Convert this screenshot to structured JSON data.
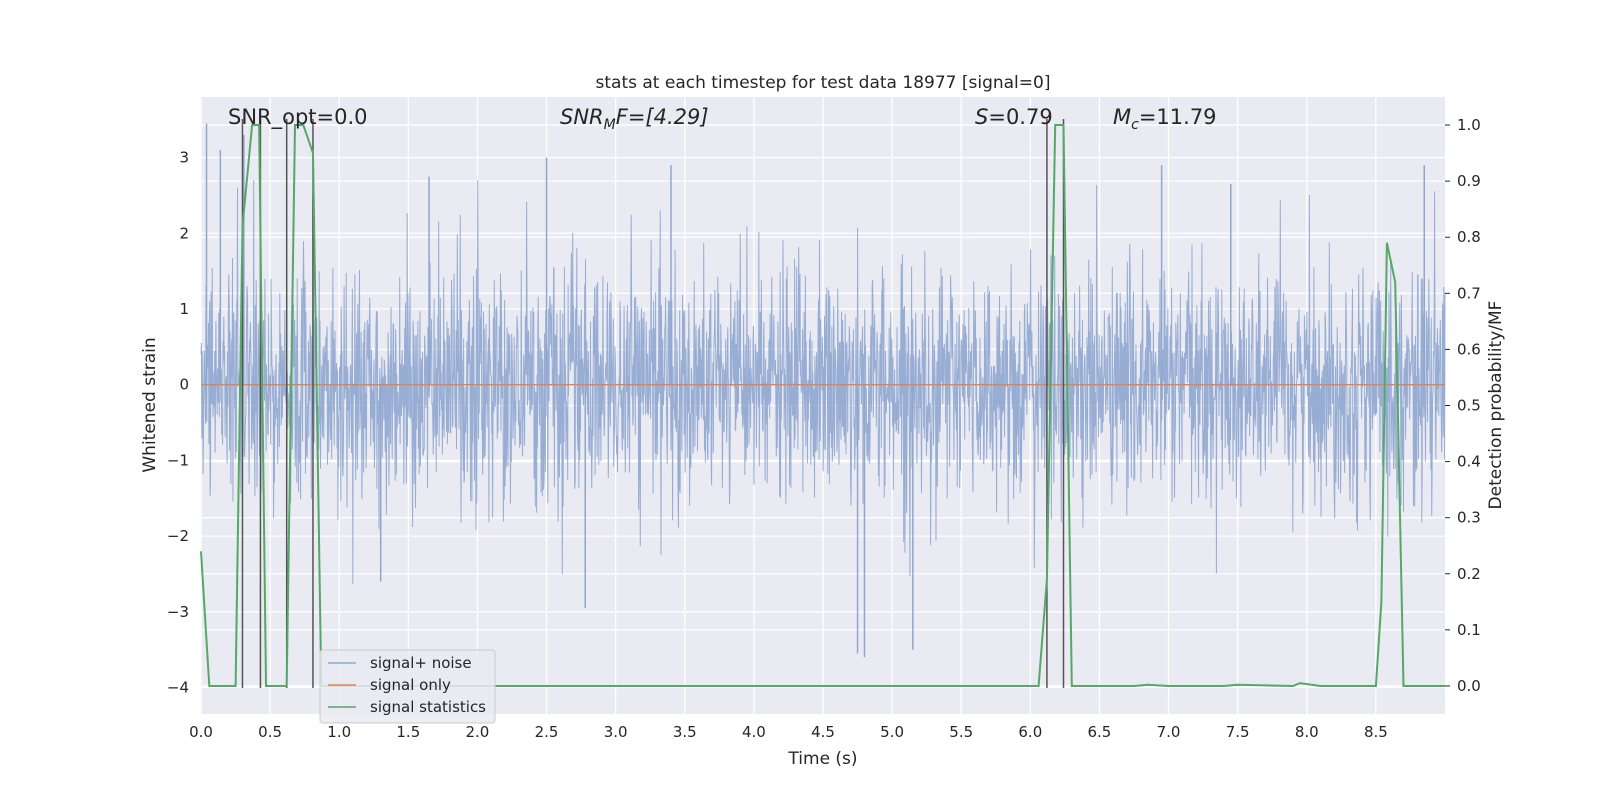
{
  "chart_data": {
    "type": "line",
    "title": "stats at each timestep for test data 18977 [signal=0]",
    "xlabel": "Time (s)",
    "ylabel": "Whitened strain",
    "y2label": "Detection probability/MF",
    "xlim": [
      0.0,
      9.0
    ],
    "ylim": [
      -4.35,
      3.8
    ],
    "y2lim": [
      -0.05,
      1.05
    ],
    "xticks": [
      "0.0",
      "0.5",
      "1.0",
      "1.5",
      "2.0",
      "2.5",
      "3.0",
      "3.5",
      "4.0",
      "4.5",
      "5.0",
      "5.5",
      "6.0",
      "6.5",
      "7.0",
      "7.5",
      "8.0",
      "8.5"
    ],
    "xtick_values": [
      0.0,
      0.5,
      1.0,
      1.5,
      2.0,
      2.5,
      3.0,
      3.5,
      4.0,
      4.5,
      5.0,
      5.5,
      6.0,
      6.5,
      7.0,
      7.5,
      8.0,
      8.5
    ],
    "yticks": [
      "−4",
      "−3",
      "−2",
      "−1",
      "0",
      "1",
      "2",
      "3"
    ],
    "ytick_values": [
      -4,
      -3,
      -2,
      -1,
      0,
      1,
      2,
      3
    ],
    "y2ticks": [
      "0.0",
      "0.1",
      "0.2",
      "0.3",
      "0.4",
      "0.5",
      "0.6",
      "0.7",
      "0.8",
      "0.9",
      "1.0"
    ],
    "y2tick_values": [
      0.0,
      0.1,
      0.2,
      0.3,
      0.4,
      0.5,
      0.6,
      0.7,
      0.8,
      0.9,
      1.0
    ],
    "grid": true,
    "legend_position": "lower-left",
    "annotations": [
      {
        "key": "snr_opt",
        "text": "SNR_opt=0.0"
      },
      {
        "key": "snr_mf",
        "text": "SNR_MF=[4.29]"
      },
      {
        "key": "s",
        "text": "S=0.79"
      },
      {
        "key": "mc",
        "text": "M_c=11.79"
      }
    ],
    "annotation_parts": {
      "snr_opt": "SNR_opt=0.0",
      "snr_mf_main": "SNR",
      "snr_mf_sub": "M",
      "snr_mf_tail": "F=[4.29]",
      "s_main": "S",
      "s_tail": "=0.79",
      "mc_main": "M",
      "mc_sub": "c",
      "mc_tail": "=11.79"
    },
    "vertical_markers": [
      0.3,
      0.43,
      0.62,
      0.81,
      6.12,
      6.24
    ],
    "series": [
      {
        "name": "signal+ noise",
        "color": "#8fa6cf",
        "axis": "left",
        "kind": "noise",
        "envelope_typical": 1.5,
        "extremes": [
          {
            "x": 0.04,
            "y": 3.45
          },
          {
            "x": 0.14,
            "y": 3.1
          },
          {
            "x": 0.31,
            "y": 3.3
          },
          {
            "x": 0.81,
            "y": 2.5
          },
          {
            "x": 1.65,
            "y": 2.75
          },
          {
            "x": 2.5,
            "y": 3.0
          },
          {
            "x": 2.78,
            "y": -2.95
          },
          {
            "x": 3.4,
            "y": 2.9
          },
          {
            "x": 4.75,
            "y": -3.55
          },
          {
            "x": 4.8,
            "y": -3.6
          },
          {
            "x": 5.15,
            "y": -3.5
          },
          {
            "x": 6.95,
            "y": 2.9
          },
          {
            "x": 8.85,
            "y": 2.9
          },
          {
            "x": 1.3,
            "y": -2.6
          },
          {
            "x": 7.45,
            "y": 2.65
          }
        ]
      },
      {
        "name": "signal only",
        "color": "#dd8452",
        "axis": "left",
        "x": [
          0.0,
          9.0
        ],
        "y": [
          0.0,
          0.0
        ]
      },
      {
        "name": "signal statistics",
        "color": "#55a868",
        "axis": "right",
        "x": [
          0.0,
          0.06,
          0.15,
          0.25,
          0.3,
          0.37,
          0.42,
          0.47,
          0.53,
          0.57,
          0.62,
          0.68,
          0.74,
          0.81,
          0.87,
          0.95,
          1.05,
          1.2,
          1.5,
          2.0,
          3.0,
          4.0,
          5.0,
          5.5,
          6.0,
          6.06,
          6.12,
          6.18,
          6.24,
          6.3,
          6.38,
          6.5,
          6.75,
          6.85,
          7.0,
          7.4,
          7.5,
          7.9,
          7.95,
          8.1,
          8.5,
          8.54,
          8.58,
          8.64,
          8.7,
          8.75,
          8.9,
          9.0
        ],
        "y": [
          0.24,
          0.0,
          0.0,
          0.0,
          0.82,
          1.0,
          1.0,
          0.0,
          0.0,
          0.0,
          0.0,
          1.0,
          1.0,
          0.95,
          0.0,
          0.0,
          0.0,
          0.0,
          0.0,
          0.0,
          0.0,
          0.0,
          0.0,
          0.0,
          0.0,
          0.0,
          0.19,
          1.0,
          1.0,
          0.0,
          0.0,
          0.0,
          0.0,
          0.002,
          0.0,
          0.0,
          0.002,
          0.0,
          0.005,
          0.0,
          0.0,
          0.15,
          0.79,
          0.72,
          0.0,
          0.0,
          0.0,
          0.0
        ]
      }
    ]
  }
}
